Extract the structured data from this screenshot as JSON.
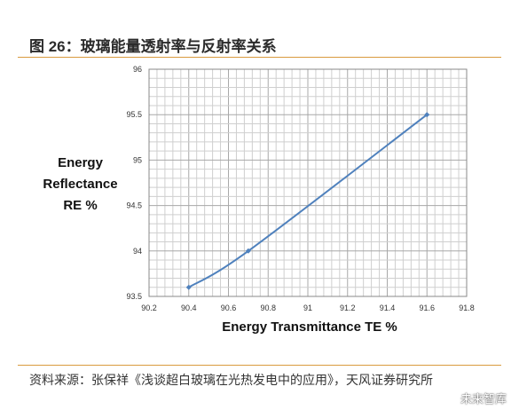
{
  "header": {
    "title": "图 26：玻璃能量透射率与反射率关系"
  },
  "footer": {
    "source": "资料来源：张保祥《浅谈超白玻璃在光热发电中的应用》，天风证券研究所",
    "watermark": "未来智库"
  },
  "chart_data": {
    "type": "line",
    "title": "",
    "xlabel": "Energy Transmittance TE %",
    "ylabel": [
      "Energy",
      "Reflectance",
      "RE %"
    ],
    "xlim": [
      90.2,
      91.8
    ],
    "ylim": [
      93.5,
      96
    ],
    "xticks": [
      "90.2",
      "90.4",
      "90.6",
      "90.8",
      "91",
      "91.2",
      "91.4",
      "91.6",
      "91.8"
    ],
    "yticks": [
      "93.5",
      "94",
      "94.5",
      "95",
      "95.5",
      "96"
    ],
    "grid": true,
    "series": [
      {
        "color": "#4f81bd",
        "x": [
          90.4,
          90.7,
          91.6
        ],
        "y": [
          93.6,
          94.0,
          95.5
        ]
      }
    ]
  }
}
